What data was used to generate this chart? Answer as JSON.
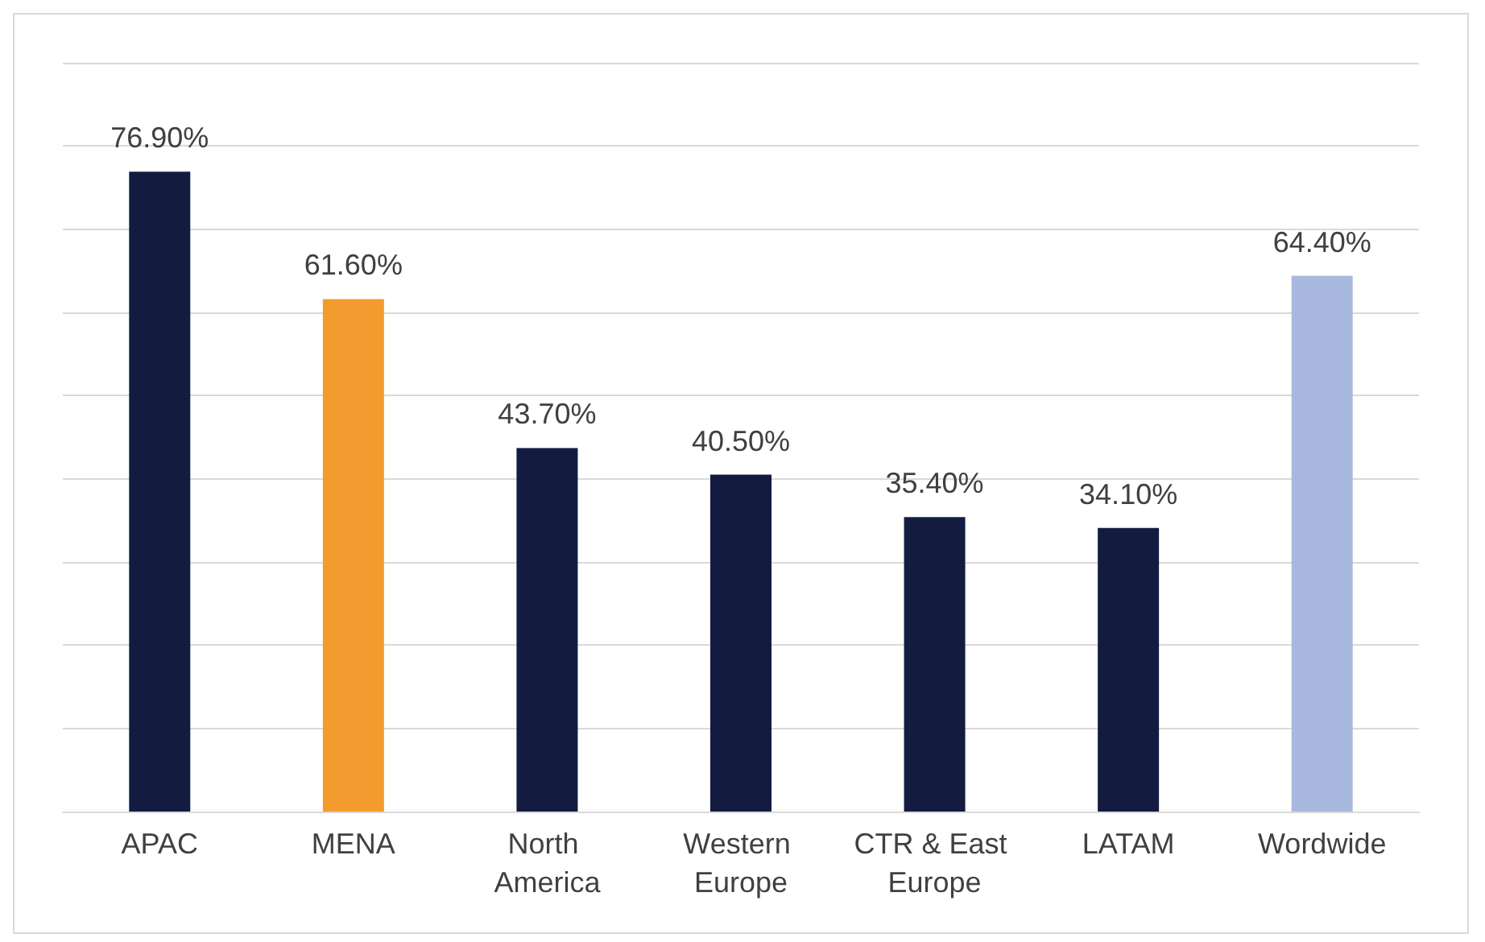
{
  "chart_data": {
    "type": "bar",
    "categories": [
      "APAC",
      "MENA",
      "North America",
      "Western Europe",
      "CTR & East Europe",
      "LATAM",
      "Wordwide"
    ],
    "values": [
      76.9,
      61.6,
      43.7,
      40.5,
      35.4,
      34.1,
      64.4
    ],
    "colors": [
      "#131c40",
      "#f39b2e",
      "#131c40",
      "#131c40",
      "#131c40",
      "#131c40",
      "#a9b8de"
    ],
    "value_labels": [
      "76.90%",
      "61.60%",
      "43.70%",
      "40.50%",
      "35.40%",
      "34.10%",
      "64.40%"
    ],
    "ylim": [
      0,
      90
    ],
    "yticks": [
      {
        "value": 0,
        "label": null
      },
      {
        "value": 10,
        "label": null
      },
      {
        "value": 20,
        "label": null
      },
      {
        "value": 30,
        "label": null
      },
      {
        "value": 40,
        "label": null
      },
      {
        "value": 50,
        "label": null
      },
      {
        "value": 60,
        "label": null
      },
      {
        "value": 70,
        "label": null
      },
      {
        "value": 80,
        "label": null
      },
      {
        "value": 90,
        "label": null
      }
    ],
    "grid": "y",
    "tick_labels": "x"
  }
}
